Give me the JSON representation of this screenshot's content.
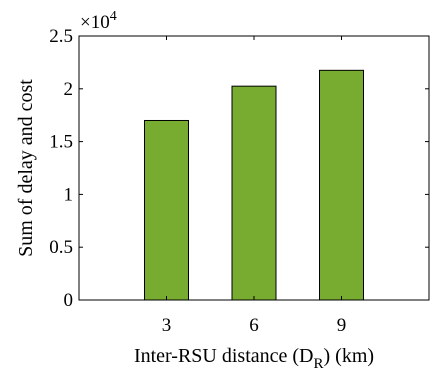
{
  "chart_data": {
    "type": "bar",
    "categories": [
      "3",
      "6",
      "9"
    ],
    "values": [
      17000,
      20250,
      21750
    ],
    "title": "",
    "ylabel": "Sum of delay and cost",
    "xlabel_parts": {
      "main": "Inter-RSU distance (D",
      "subscript": "R",
      "tail": ") (km)"
    },
    "ylim": [
      0,
      25000
    ],
    "yticks": [
      "0",
      "0.5",
      "1",
      "1.5",
      "2",
      "2.5"
    ],
    "yticks_values": [
      0,
      5000,
      10000,
      15000,
      20000,
      25000
    ],
    "y_multiplier": {
      "base": "×10",
      "exponent": "4"
    },
    "bar_color": "#77ac30",
    "grid": false
  }
}
